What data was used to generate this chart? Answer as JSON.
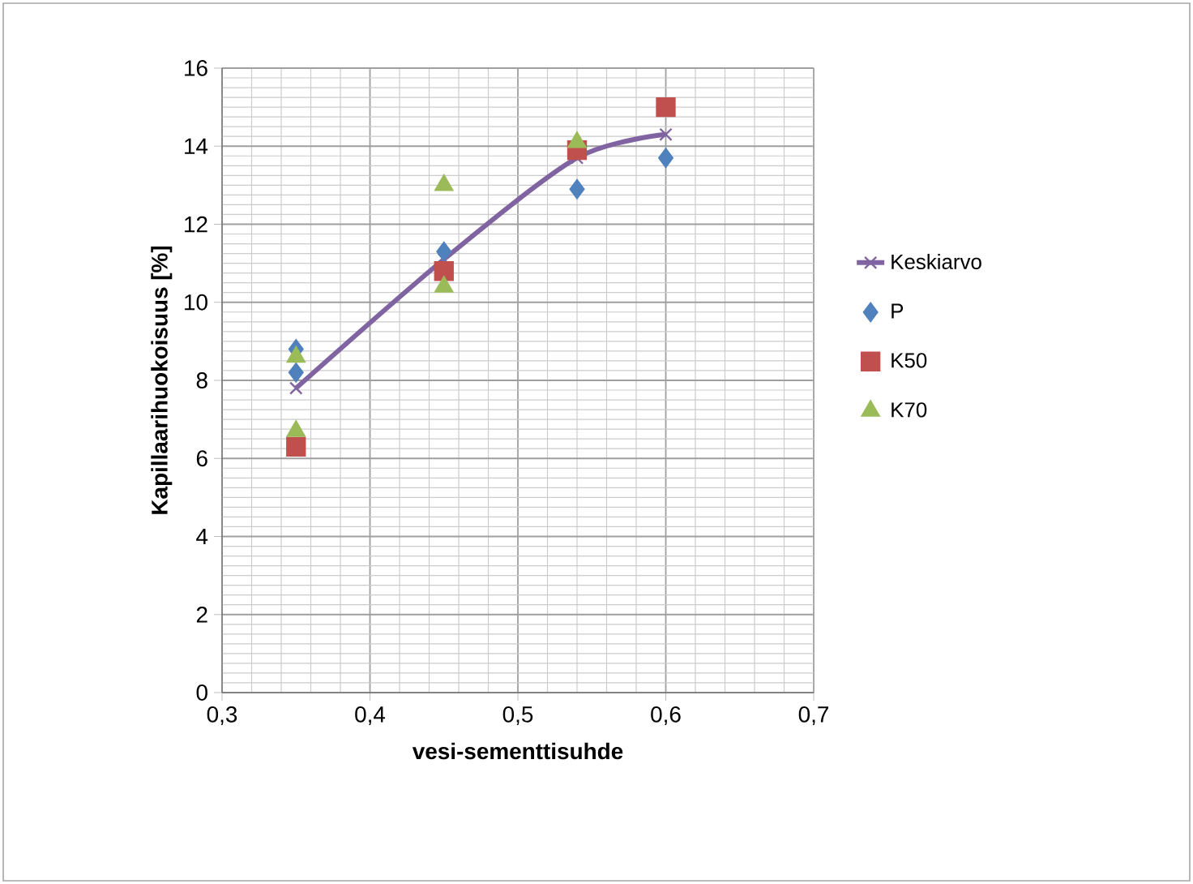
{
  "chart_data": {
    "type": "scatter",
    "xlabel": "vesi-sementtisuhde",
    "ylabel": "Kapillaarihuokoisuus [%]",
    "xlim": [
      0.3,
      0.7
    ],
    "xticks": [
      {
        "value": 0.3,
        "label": "0,3"
      },
      {
        "value": 0.4,
        "label": "0,4"
      },
      {
        "value": 0.5,
        "label": "0,5"
      },
      {
        "value": 0.6,
        "label": "0,6"
      },
      {
        "value": 0.7,
        "label": "0,7"
      }
    ],
    "ylim": [
      0,
      16
    ],
    "yticks": [
      0,
      2,
      4,
      6,
      8,
      10,
      12,
      14,
      16
    ],
    "grid": true,
    "legend": "right",
    "series": [
      {
        "name": "Keskiarvo",
        "type": "line",
        "color": "#8064a2",
        "marker": "cross",
        "x": [
          0.35,
          0.45,
          0.54,
          0.6
        ],
        "values": [
          7.8,
          11.1,
          13.7,
          14.3
        ]
      },
      {
        "name": "P",
        "color": "#4f81bd",
        "marker": "diamond",
        "x": [
          0.35,
          0.35,
          0.45,
          0.54,
          0.6
        ],
        "values": [
          8.8,
          8.2,
          11.3,
          12.9,
          13.7
        ]
      },
      {
        "name": "K50",
        "color": "#c0504d",
        "marker": "square",
        "x": [
          0.35,
          0.45,
          0.54,
          0.6
        ],
        "values": [
          6.3,
          10.8,
          13.9,
          15.0
        ]
      },
      {
        "name": "K70",
        "color": "#9bbb59",
        "marker": "triangle",
        "x": [
          0.35,
          0.35,
          0.45,
          0.45,
          0.54
        ],
        "values": [
          8.6,
          6.7,
          13.0,
          10.4,
          14.1
        ]
      }
    ]
  }
}
